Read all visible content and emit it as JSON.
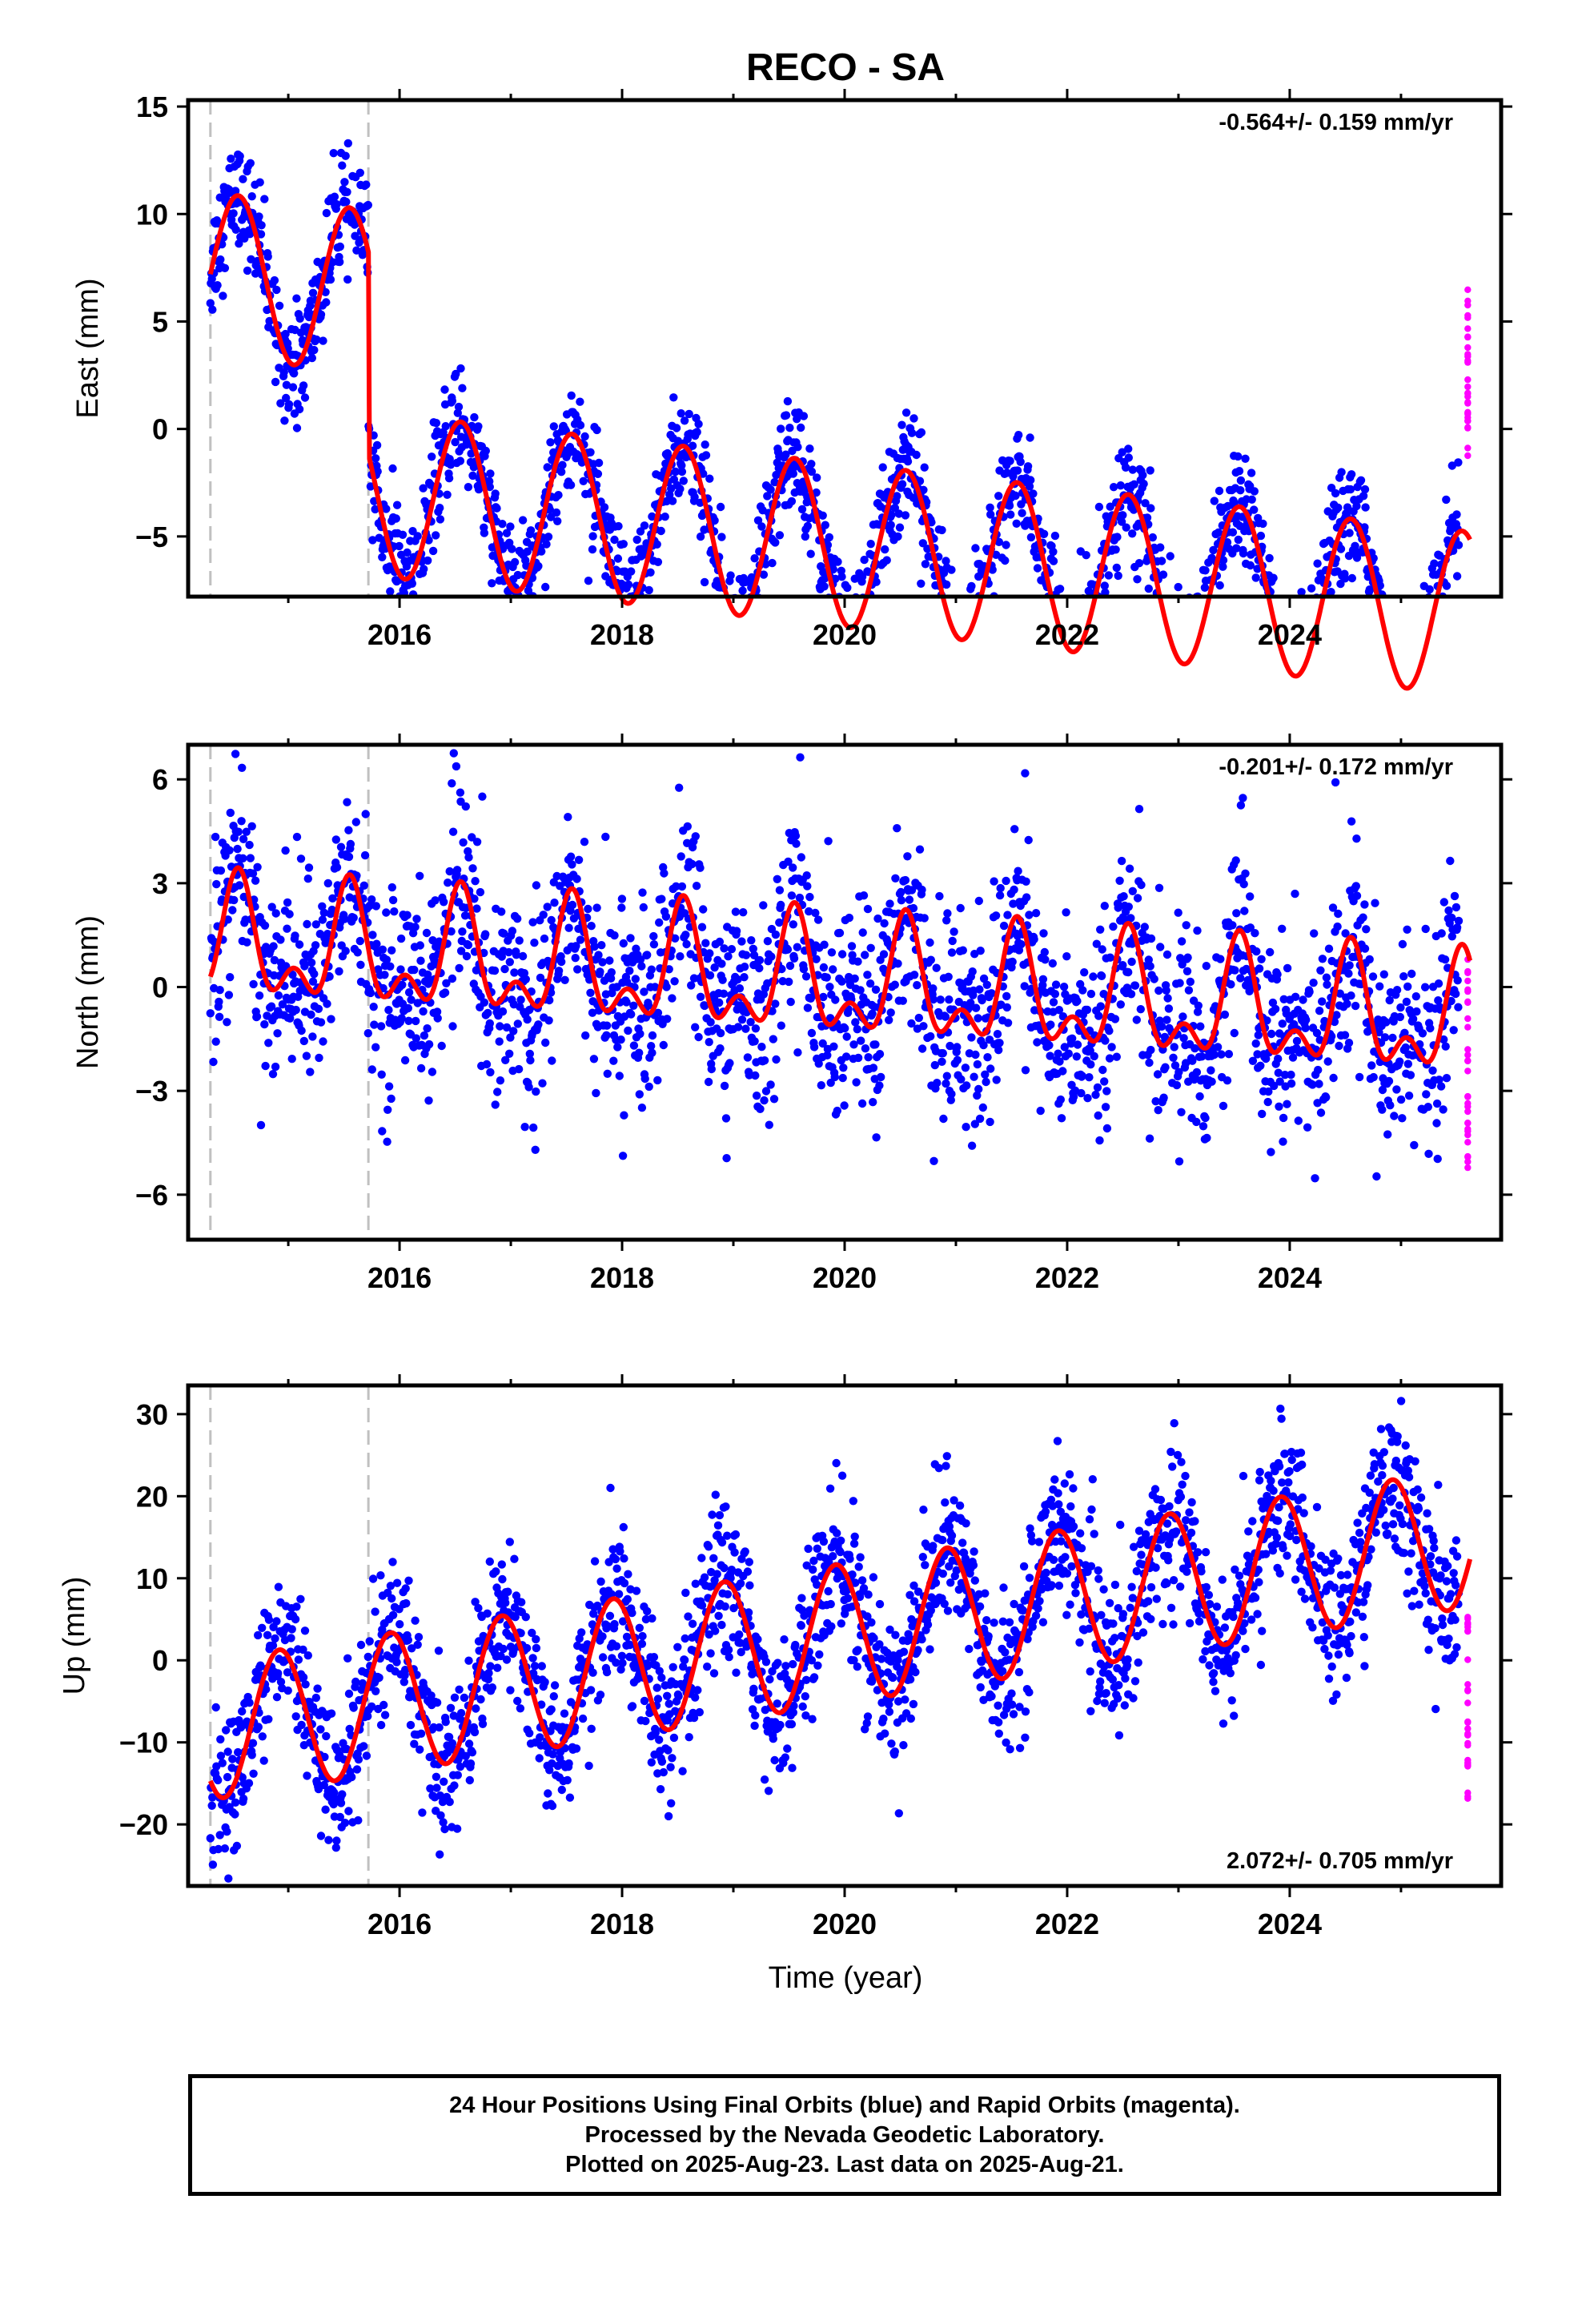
{
  "chart_data": {
    "title": "RECO - SA",
    "type": "scatter",
    "xlabel": "Time (year)",
    "x_ticks": [
      2016,
      2018,
      2020,
      2022,
      2024
    ],
    "xlim": [
      2014.1,
      2025.9
    ],
    "event_lines": [
      2014.3,
      2015.72
    ],
    "colors": {
      "final": "#0000ff",
      "rapid": "#ff00ff",
      "model": "#ff0000",
      "event_line": "#c0c0c0"
    },
    "panels": [
      {
        "id": "east",
        "ylabel": "East (mm)",
        "ylim": [
          -7.8,
          15.3
        ],
        "y_ticks": [
          -5,
          0,
          5,
          10,
          15
        ],
        "rate_label": "-0.564+/- 0.159 mm/yr",
        "rate_position": "top-right",
        "trend": {
          "rate": -0.564,
          "offset_at_2014_3": 7.2,
          "amplitude": 3.8,
          "phase_peak": 0.55
        },
        "steps": [
          {
            "t": 2015.72,
            "d": -9.4
          }
        ],
        "scatter": 1.3,
        "rapid_range": [
          -2,
          6.8
        ]
      },
      {
        "id": "north",
        "ylabel": "North (mm)",
        "ylim": [
          -7.3,
          7.0
        ],
        "y_ticks": [
          -6,
          -3,
          0,
          3,
          6
        ],
        "rate_label": "-0.201+/- 0.172 mm/yr",
        "rate_position": "top-right",
        "trend": {
          "rate": -0.201,
          "offset_at_2014_3": 1.2,
          "amplitude": 1.4,
          "phase_peak": 0.55
        },
        "steps": [],
        "scatter": 1.4,
        "rapid_range": [
          -5.5,
          0.8
        ]
      },
      {
        "id": "up",
        "ylabel": "Up (mm)",
        "ylim": [
          -27.5,
          33.5
        ],
        "y_ticks": [
          -20,
          -10,
          0,
          10,
          20,
          30
        ],
        "rate_label": "2.072+/- 0.705 mm/yr",
        "rate_position": "bottom-right",
        "trend": {
          "rate": 2.072,
          "offset_at_2014_3": -8.5,
          "amplitude": 8.5,
          "phase_peak": 0.92
        },
        "steps": [],
        "scatter": 4.5,
        "rapid_range": [
          -17,
          6
        ]
      }
    ]
  },
  "footer": {
    "line1": "24 Hour Positions Using Final Orbits (blue) and Rapid Orbits (magenta).",
    "line2": "Processed by the Nevada Geodetic Laboratory.",
    "line3": "Plotted on 2025-Aug-23. Last data on 2025-Aug-21."
  }
}
